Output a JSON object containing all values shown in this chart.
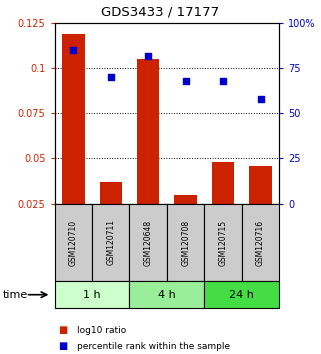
{
  "title": "GDS3433 / 17177",
  "samples": [
    "GSM120710",
    "GSM120711",
    "GSM120648",
    "GSM120708",
    "GSM120715",
    "GSM120716"
  ],
  "groups": [
    {
      "label": "1 h",
      "indices": [
        0,
        1
      ],
      "color": "#ccffcc"
    },
    {
      "label": "4 h",
      "indices": [
        2,
        3
      ],
      "color": "#99ee99"
    },
    {
      "label": "24 h",
      "indices": [
        4,
        5
      ],
      "color": "#44dd44"
    }
  ],
  "log10_ratio": [
    0.119,
    0.037,
    0.105,
    0.03,
    0.048,
    0.046
  ],
  "percentile_rank": [
    85,
    70,
    82,
    68,
    68,
    58
  ],
  "bar_color": "#cc2200",
  "dot_color": "#0000cc",
  "ylim_left": [
    0.025,
    0.125
  ],
  "ylim_right": [
    0,
    100
  ],
  "yticks_left": [
    0.025,
    0.05,
    0.075,
    0.1,
    0.125
  ],
  "yticks_right": [
    0,
    25,
    50,
    75,
    100
  ],
  "ytick_labels_left": [
    "0.025",
    "0.05",
    "0.075",
    "0.1",
    "0.125"
  ],
  "ytick_labels_right": [
    "0",
    "25",
    "50",
    "75",
    "100%"
  ],
  "bar_bottom": 0.025,
  "background_color": "#ffffff",
  "sample_box_color": "#cccccc",
  "legend_red_label": "log10 ratio",
  "legend_blue_label": "percentile rank within the sample",
  "time_label": "time"
}
